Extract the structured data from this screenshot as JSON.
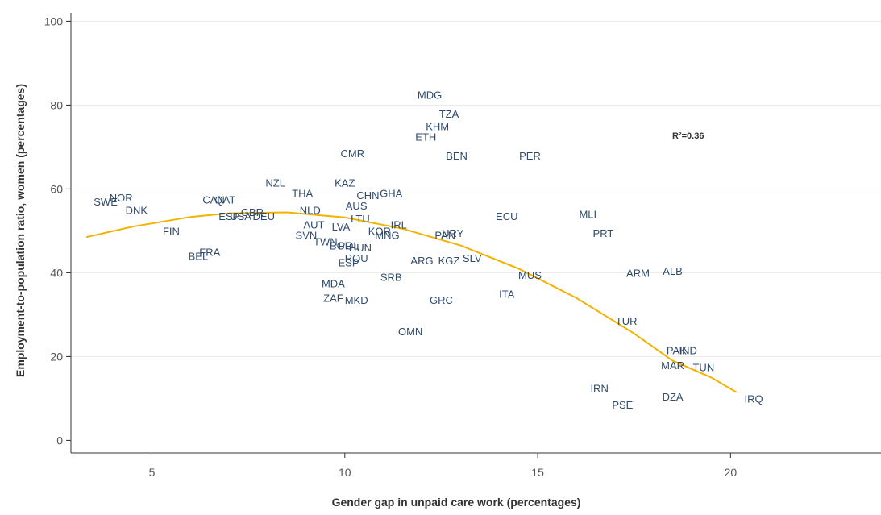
{
  "chart_data": {
    "type": "scatter",
    "xlabel": "Gender gap in unpaid care work (percentages)",
    "ylabel": "Employment-to-population ratio, women (percentages)",
    "annotation": "R²=0.36",
    "xlim": [
      2.9,
      23.9
    ],
    "ylim": [
      -3,
      102
    ],
    "x_ticks": [
      5,
      10,
      15,
      20
    ],
    "y_ticks": [
      0,
      20,
      40,
      60,
      80,
      100
    ],
    "grid": "horizontal",
    "colors": {
      "label": "#2f4b6e",
      "trend": "#f2b200",
      "grid": "#ececec",
      "axis": "#333333"
    },
    "points": [
      {
        "label": "SWE",
        "x": 3.8,
        "y": 57
      },
      {
        "label": "NOR",
        "x": 4.2,
        "y": 58
      },
      {
        "label": "DNK",
        "x": 4.6,
        "y": 55
      },
      {
        "label": "FIN",
        "x": 5.5,
        "y": 50
      },
      {
        "label": "BEL",
        "x": 6.2,
        "y": 44
      },
      {
        "label": "FRA",
        "x": 6.5,
        "y": 45
      },
      {
        "label": "CAN",
        "x": 6.6,
        "y": 57.5
      },
      {
        "label": "QAT",
        "x": 6.9,
        "y": 57.5
      },
      {
        "label": "ESP",
        "x": 7.0,
        "y": 53.5
      },
      {
        "label": "USA",
        "x": 7.3,
        "y": 53.5
      },
      {
        "label": "GBR",
        "x": 7.6,
        "y": 54.5
      },
      {
        "label": "DEU",
        "x": 7.9,
        "y": 53.5
      },
      {
        "label": "NZL",
        "x": 8.2,
        "y": 61.5
      },
      {
        "label": "THA",
        "x": 8.9,
        "y": 59
      },
      {
        "label": "NLD",
        "x": 9.1,
        "y": 55
      },
      {
        "label": "AUT",
        "x": 9.2,
        "y": 51.5
      },
      {
        "label": "SVN",
        "x": 9.0,
        "y": 49
      },
      {
        "label": "TWN",
        "x": 9.5,
        "y": 47.5
      },
      {
        "label": "BGR",
        "x": 9.9,
        "y": 46.5
      },
      {
        "label": "POL",
        "x": 10.1,
        "y": 46.5
      },
      {
        "label": "HUN",
        "x": 10.4,
        "y": 46
      },
      {
        "label": "ROU",
        "x": 10.3,
        "y": 43.5
      },
      {
        "label": "ESP",
        "x": 10.1,
        "y": 42.5
      },
      {
        "label": "MDA",
        "x": 9.7,
        "y": 37.5
      },
      {
        "label": "ZAF",
        "x": 9.7,
        "y": 34
      },
      {
        "label": "MKD",
        "x": 10.3,
        "y": 33.5
      },
      {
        "label": "LVA",
        "x": 9.9,
        "y": 51
      },
      {
        "label": "LTU",
        "x": 10.4,
        "y": 53
      },
      {
        "label": "AUS",
        "x": 10.3,
        "y": 56
      },
      {
        "label": "KAZ",
        "x": 10.0,
        "y": 61.5
      },
      {
        "label": "CHN",
        "x": 10.6,
        "y": 58.5
      },
      {
        "label": "GHA",
        "x": 11.2,
        "y": 59
      },
      {
        "label": "CMR",
        "x": 10.2,
        "y": 68.5
      },
      {
        "label": "KOR",
        "x": 10.9,
        "y": 50
      },
      {
        "label": "MNG",
        "x": 11.1,
        "y": 49
      },
      {
        "label": "IRL",
        "x": 11.4,
        "y": 51.5
      },
      {
        "label": "SRB",
        "x": 11.2,
        "y": 39
      },
      {
        "label": "OMN",
        "x": 11.7,
        "y": 26
      },
      {
        "label": "ARG",
        "x": 12.0,
        "y": 43
      },
      {
        "label": "KGZ",
        "x": 12.7,
        "y": 43
      },
      {
        "label": "GRC",
        "x": 12.5,
        "y": 33.5
      },
      {
        "label": "SLV",
        "x": 13.3,
        "y": 43.5
      },
      {
        "label": "PAN",
        "x": 12.6,
        "y": 49
      },
      {
        "label": "URY",
        "x": 12.8,
        "y": 49.5
      },
      {
        "label": "MDG",
        "x": 12.2,
        "y": 82.5
      },
      {
        "label": "TZA",
        "x": 12.7,
        "y": 78
      },
      {
        "label": "KHM",
        "x": 12.4,
        "y": 75
      },
      {
        "label": "ETH",
        "x": 12.1,
        "y": 72.5
      },
      {
        "label": "BEN",
        "x": 12.9,
        "y": 68
      },
      {
        "label": "PER",
        "x": 14.8,
        "y": 68
      },
      {
        "label": "ECU",
        "x": 14.2,
        "y": 53.5
      },
      {
        "label": "MLI",
        "x": 16.3,
        "y": 54
      },
      {
        "label": "PRT",
        "x": 16.7,
        "y": 49.5
      },
      {
        "label": "ITA",
        "x": 14.2,
        "y": 35
      },
      {
        "label": "MUS",
        "x": 14.8,
        "y": 39.5
      },
      {
        "label": "ARM",
        "x": 17.6,
        "y": 40
      },
      {
        "label": "ALB",
        "x": 18.5,
        "y": 40.5
      },
      {
        "label": "TUR",
        "x": 17.3,
        "y": 28.5
      },
      {
        "label": "PAK",
        "x": 18.6,
        "y": 21.5
      },
      {
        "label": "IND",
        "x": 18.9,
        "y": 21.5
      },
      {
        "label": "MAR",
        "x": 18.5,
        "y": 18
      },
      {
        "label": "TUN",
        "x": 19.3,
        "y": 17.5
      },
      {
        "label": "IRN",
        "x": 16.6,
        "y": 12.5
      },
      {
        "label": "PSE",
        "x": 17.2,
        "y": 8.5
      },
      {
        "label": "DZA",
        "x": 18.5,
        "y": 10.5
      },
      {
        "label": "IRQ",
        "x": 20.6,
        "y": 10
      }
    ],
    "trendline": [
      {
        "x": 3.3,
        "y": 48.5
      },
      {
        "x": 4.5,
        "y": 51
      },
      {
        "x": 6.0,
        "y": 53.3
      },
      {
        "x": 7.0,
        "y": 54.2
      },
      {
        "x": 8.5,
        "y": 54.4
      },
      {
        "x": 10.0,
        "y": 53.2
      },
      {
        "x": 11.5,
        "y": 50.5
      },
      {
        "x": 13.0,
        "y": 46.5
      },
      {
        "x": 14.5,
        "y": 41
      },
      {
        "x": 16.0,
        "y": 34
      },
      {
        "x": 17.5,
        "y": 25.5
      },
      {
        "x": 18.5,
        "y": 19
      },
      {
        "x": 19.5,
        "y": 15
      },
      {
        "x": 20.15,
        "y": 11.5
      }
    ]
  }
}
